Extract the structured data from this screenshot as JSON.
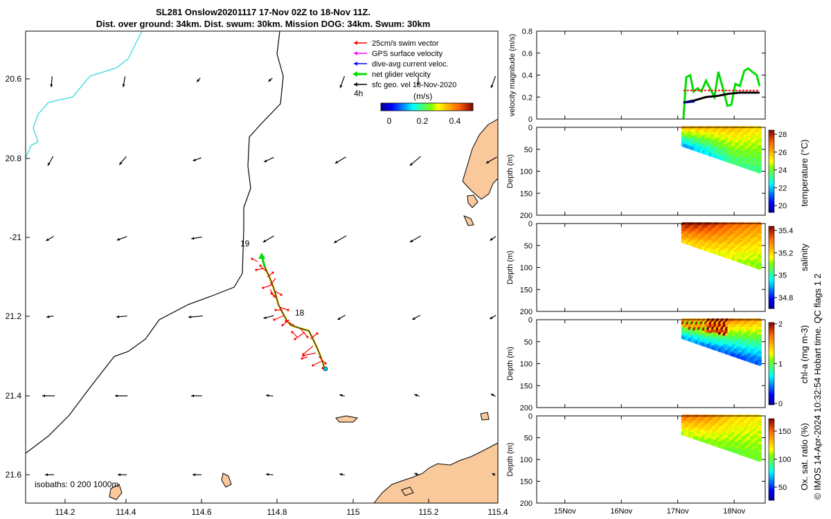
{
  "title_lines": [
    "SL281 Onslow20201117 17-Nov 02Z to 18-Nov 11Z.",
    "Dist. over ground: 34km. Dist. swum: 30km. Mission DOG: 34km. Swum: 30km"
  ],
  "side_text": "© IMOS 14-Apr-2024 10:32:54 Hobart time. QC flags 1  2",
  "colors": {
    "land": "#f9c89b",
    "swim": "#ff0000",
    "gps": "#ff00ff",
    "dive": "#0000ff",
    "net": "#00dd00",
    "sfc": "#000000",
    "track_line": "#00e5e5"
  },
  "map": {
    "lon_ticks": [
      "114.2",
      "114.4",
      "114.6",
      "114.8",
      "115",
      "115.2",
      "115.4"
    ],
    "lat_ticks": [
      "20.6",
      "20.8",
      "-21",
      "21.2",
      "21.4",
      "21.6"
    ],
    "xlim": [
      114.12,
      115.4
    ],
    "ylim": [
      -21.67,
      -20.48
    ],
    "legend": [
      "25cm/s swim vector",
      "GPS surface velocity",
      "dive-avg current veloc.",
      "net glider velocity",
      "sfc geo. vel 18-Nov-2020"
    ],
    "legend_extra": "4h",
    "colorbar_label": "(m/s)",
    "colorbar_ticks": [
      "0",
      "0.2",
      "0.4"
    ],
    "day_labels": [
      "19",
      "18"
    ],
    "isobaths": "isobaths: 0   200  1000m"
  },
  "chart_data": [
    {
      "type": "line",
      "ylabel": "velocity magnitude (m/s)",
      "ylim": [
        0,
        0.8
      ],
      "yticks": [
        "0",
        "0.2",
        "0.4",
        "0.6",
        "0.8"
      ],
      "x_categories": [
        "15Nov",
        "16Nov",
        "17Nov",
        "18Nov"
      ],
      "series": [
        {
          "color": "#00dd00",
          "x": [
            17.1,
            17.15,
            17.22,
            17.28,
            17.35,
            17.42,
            17.5,
            17.58,
            17.65,
            17.72,
            17.8,
            17.88,
            17.95,
            18.02,
            18.1,
            18.18,
            18.25,
            18.32,
            18.4,
            18.45
          ],
          "y": [
            0.0,
            0.38,
            0.4,
            0.25,
            0.28,
            0.25,
            0.35,
            0.27,
            0.2,
            0.43,
            0.28,
            0.12,
            0.13,
            0.32,
            0.3,
            0.44,
            0.46,
            0.43,
            0.4,
            0.3
          ]
        },
        {
          "color": "#000000",
          "x": [
            17.1,
            17.3,
            17.5,
            17.7,
            17.9,
            18.1,
            18.3,
            18.45
          ],
          "y": [
            0.15,
            0.17,
            0.2,
            0.21,
            0.23,
            0.24,
            0.24,
            0.24
          ]
        },
        {
          "color": "#ff0000",
          "x": [
            17.1,
            17.3,
            17.5,
            17.7,
            17.9,
            18.1,
            18.3,
            18.45
          ],
          "y": [
            0.26,
            0.26,
            0.26,
            0.26,
            0.26,
            0.26,
            0.26,
            0.26
          ]
        }
      ]
    },
    {
      "type": "scatter",
      "ylabel": "Depth (m)",
      "yticks": [
        "0",
        "50",
        "100",
        "150",
        "200"
      ],
      "cbar_label": "temperature (°C)",
      "cbar_ticks": [
        "28",
        "26",
        "24",
        "22",
        "20"
      ],
      "range": [
        19.5,
        28.5
      ],
      "top": [
        26,
        26,
        26,
        25.5
      ],
      "bottom": [
        22,
        22.5,
        23.5,
        23.5
      ]
    },
    {
      "type": "scatter",
      "ylabel": "Depth (m)",
      "yticks": [
        "0",
        "50",
        "100",
        "150",
        "200"
      ],
      "cbar_label": "salinity",
      "cbar_ticks": [
        "35.4",
        "35.2",
        "35",
        "34.8"
      ],
      "range": [
        34.7,
        35.45
      ],
      "top": [
        35.42,
        35.4,
        35.33,
        35.3
      ],
      "bottom": [
        35.22,
        35.18,
        35.15,
        35.1
      ]
    },
    {
      "type": "scatter",
      "ylabel": "Depth (m)",
      "yticks": [
        "0",
        "50",
        "100",
        "150",
        "200"
      ],
      "cbar_label": "chl-a (mg m-3)",
      "cbar_ticks": [
        "2",
        "1",
        "0"
      ],
      "range": [
        0,
        2
      ],
      "top": [
        1.5,
        1.8,
        1.6,
        1.5
      ],
      "bottom": [
        0.6,
        0.5,
        0.4,
        0.4
      ]
    },
    {
      "type": "scatter",
      "ylabel": "Depth (m)",
      "yticks": [
        "0",
        "50",
        "100",
        "150",
        "200"
      ],
      "cbar_label": "Ox. sat. ratio (%)",
      "cbar_ticks": [
        "150",
        "100",
        "50"
      ],
      "range": [
        25,
        170
      ],
      "top": [
        145,
        140,
        125,
        120
      ],
      "bottom": [
        110,
        105,
        100,
        100
      ]
    }
  ]
}
